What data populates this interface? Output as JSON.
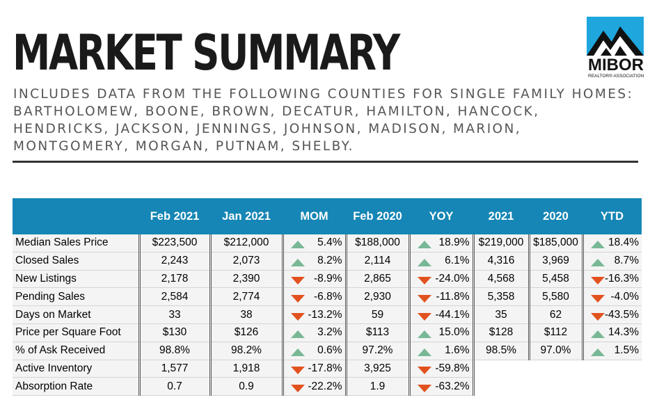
{
  "header": {
    "title": "MARKET SUMMARY",
    "subtitle": "INCLUDES DATA FROM THE FOLLOWING COUNTIES FOR SINGLE FAMILY HOMES: BARTHOLOMEW, BOONE, BROWN, DECATUR, HAMILTON, HANCOCK, HENDRICKS, JACKSON, JENNINGS, JOHNSON, MADISON, MARION, MONTGOMERY, MORGAN, PUTNAM, SHELBY."
  },
  "logo": {
    "name": "MIBOR",
    "tagline": "REALTOR® ASSOCIATION",
    "color": "#1ea6dd",
    "icon": "mountain-icon"
  },
  "colors": {
    "header_band": "#1586b5",
    "up_arrow": "#78b896",
    "down_arrow": "#e2521f"
  },
  "table": {
    "columns": [
      "",
      "Feb 2021",
      "Jan 2021",
      "MOM",
      "Feb 2020",
      "YOY",
      "2021",
      "2020",
      "YTD"
    ],
    "rows": [
      {
        "label": "Median Sales Price",
        "feb21": "$223,500",
        "jan21": "$212,000",
        "mom": "5.4%",
        "mom_dir": "up",
        "feb20": "$188,000",
        "yoy": "18.9%",
        "yoy_dir": "up",
        "y21": "$219,000",
        "y20": "$185,000",
        "ytd": "18.4%",
        "ytd_dir": "up"
      },
      {
        "label": "Closed Sales",
        "feb21": "2,243",
        "jan21": "2,073",
        "mom": "8.2%",
        "mom_dir": "up",
        "feb20": "2,114",
        "yoy": "6.1%",
        "yoy_dir": "up",
        "y21": "4,316",
        "y20": "3,969",
        "ytd": "8.7%",
        "ytd_dir": "up"
      },
      {
        "label": "New Listings",
        "feb21": "2,178",
        "jan21": "2,390",
        "mom": "-8.9%",
        "mom_dir": "down",
        "feb20": "2,865",
        "yoy": "-24.0%",
        "yoy_dir": "down",
        "y21": "4,568",
        "y20": "5,458",
        "ytd": "-16.3%",
        "ytd_dir": "down"
      },
      {
        "label": "Pending Sales",
        "feb21": "2,584",
        "jan21": "2,774",
        "mom": "-6.8%",
        "mom_dir": "down",
        "feb20": "2,930",
        "yoy": "-11.8%",
        "yoy_dir": "down",
        "y21": "5,358",
        "y20": "5,580",
        "ytd": "-4.0%",
        "ytd_dir": "down"
      },
      {
        "label": "Days on Market",
        "feb21": "33",
        "jan21": "38",
        "mom": "-13.2%",
        "mom_dir": "down",
        "feb20": "59",
        "yoy": "-44.1%",
        "yoy_dir": "down",
        "y21": "35",
        "y20": "62",
        "ytd": "-43.5%",
        "ytd_dir": "down"
      },
      {
        "label": "Price per Square Foot",
        "feb21": "$130",
        "jan21": "$126",
        "mom": "3.2%",
        "mom_dir": "up",
        "feb20": "$113",
        "yoy": "15.0%",
        "yoy_dir": "up",
        "y21": "$128",
        "y20": "$112",
        "ytd": "14.3%",
        "ytd_dir": "up"
      },
      {
        "label": "% of Ask Received",
        "feb21": "98.8%",
        "jan21": "98.2%",
        "mom": "0.6%",
        "mom_dir": "up",
        "feb20": "97.2%",
        "yoy": "1.6%",
        "yoy_dir": "up",
        "y21": "98.5%",
        "y20": "97.0%",
        "ytd": "1.5%",
        "ytd_dir": "up"
      },
      {
        "label": "Active Inventory",
        "feb21": "1,577",
        "jan21": "1,918",
        "mom": "-17.8%",
        "mom_dir": "down",
        "feb20": "3,925",
        "yoy": "-59.8%",
        "yoy_dir": "down",
        "y21": "",
        "y20": "",
        "ytd": "",
        "ytd_dir": ""
      },
      {
        "label": "Absorption Rate",
        "feb21": "0.7",
        "jan21": "0.9",
        "mom": "-22.2%",
        "mom_dir": "down",
        "feb20": "1.9",
        "yoy": "-63.2%",
        "yoy_dir": "down",
        "y21": "",
        "y20": "",
        "ytd": "",
        "ytd_dir": ""
      }
    ]
  }
}
